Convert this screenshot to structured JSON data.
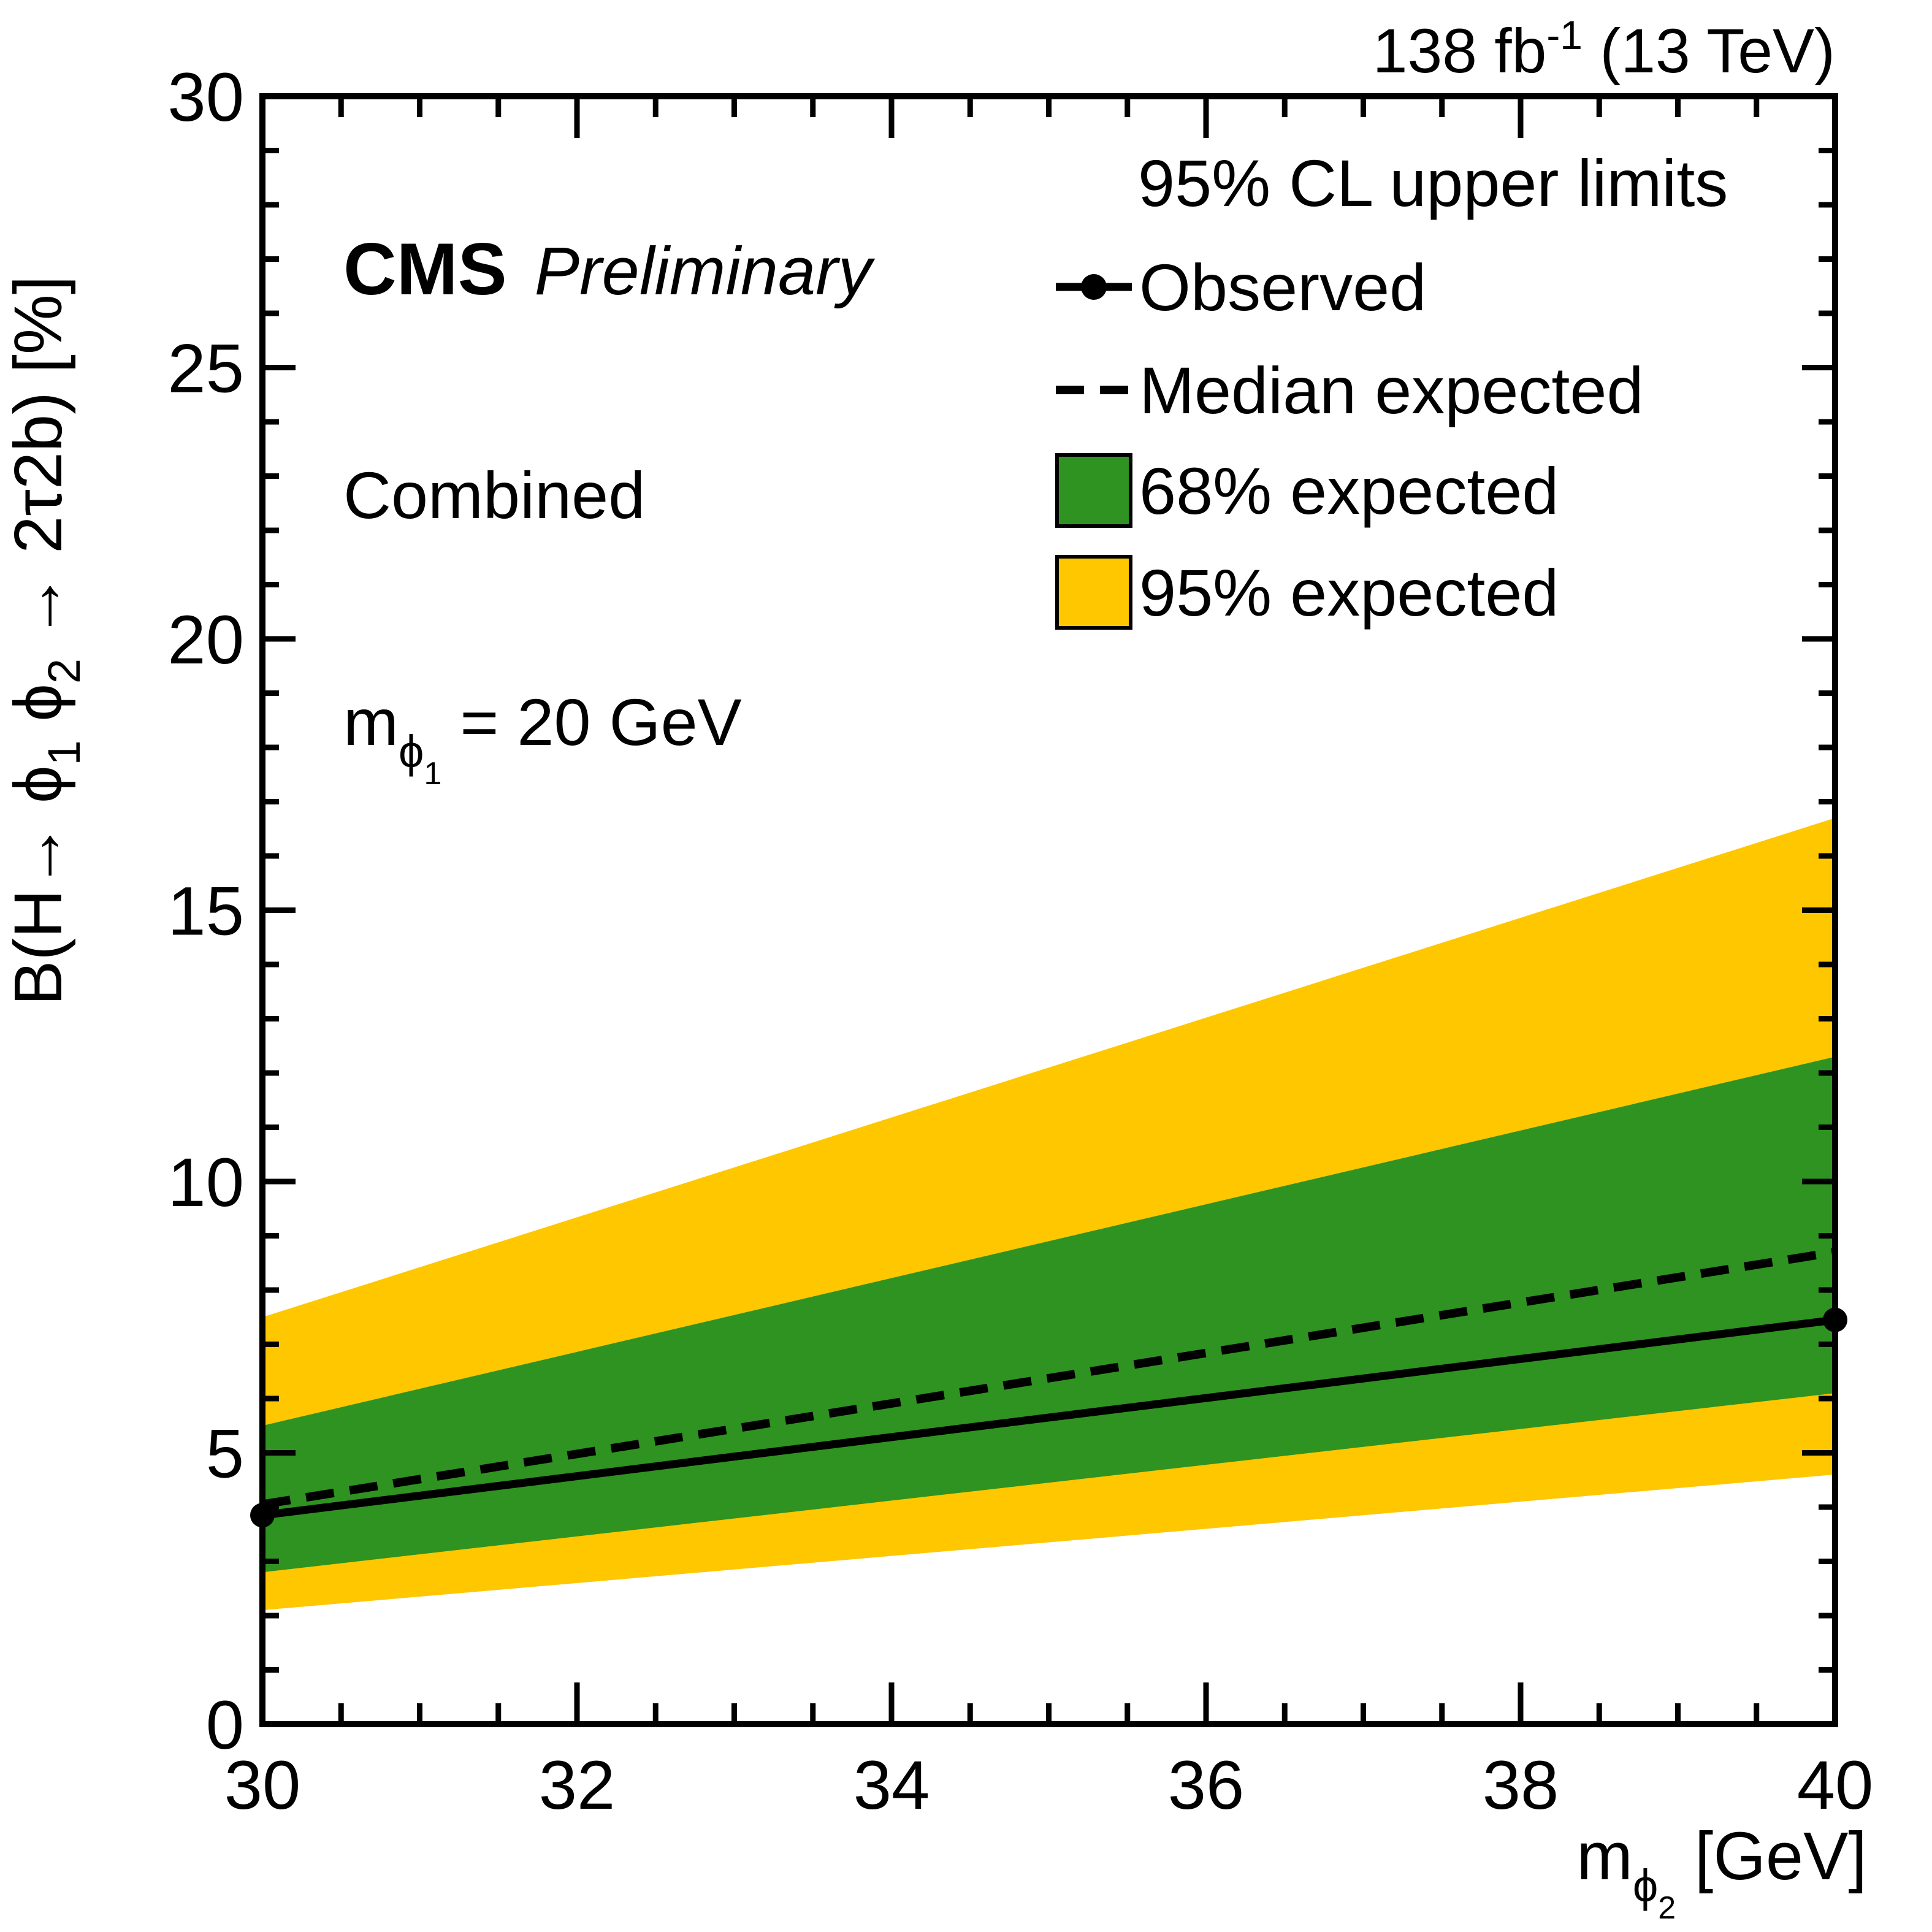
{
  "lumi": {
    "pre": "138 fb",
    "sup": "-1",
    "post": " (13 TeV)"
  },
  "annotations": {
    "experiment": "CMS",
    "status": "Preliminary",
    "channel": "Combined",
    "mass": {
      "m": "m",
      "phi": "ϕ",
      "phi_sub": "1",
      "rest": " = 20 GeV"
    }
  },
  "legend": {
    "header": "95% CL upper limits",
    "entries": [
      {
        "label": "Observed",
        "marker": "solid-line-with-dot"
      },
      {
        "label": "Median expected",
        "marker": "dashed-line"
      },
      {
        "label": "68% expected",
        "marker": "green-box"
      },
      {
        "label": "95% expected",
        "marker": "yellow-box"
      }
    ]
  },
  "axes": {
    "y_title": {
      "p1": "B(H→ ",
      "phi1": "ϕ",
      "sub1": "1",
      "p2": " ϕ",
      "sub2": "2",
      "p3": " → 2τ2b) [%]"
    },
    "x_title": {
      "m": "m",
      "phi": "ϕ",
      "sub": "2",
      "rest": " [GeV]"
    }
  },
  "chart_data": {
    "type": "line",
    "title": "95% CL upper limits on B(H->phi1 phi2->2tau2b), combined, m_phi1 = 20 GeV",
    "x": [
      30,
      40
    ],
    "series": [
      {
        "name": "Observed",
        "values": [
          3.85,
          7.45
        ],
        "style": "solid line, filled circle markers",
        "color": "#000000"
      },
      {
        "name": "Median expected",
        "values": [
          4.05,
          8.7
        ],
        "style": "dashed line",
        "color": "#000000"
      }
    ],
    "bands": [
      {
        "name": "68% expected",
        "low": [
          2.8,
          6.1
        ],
        "high": [
          5.5,
          12.3
        ],
        "color_key": "band68"
      },
      {
        "name": "95% expected",
        "low": [
          2.1,
          4.6
        ],
        "high": [
          7.5,
          16.7
        ],
        "color_key": "band95"
      }
    ],
    "xlabel": "m_phi2 [GeV]",
    "ylabel": "B(H -> phi1 phi2 -> 2tau2b) [%]",
    "xlim": [
      30,
      40
    ],
    "ylim": [
      0,
      30
    ],
    "xticks": [
      30,
      32,
      34,
      36,
      38,
      40
    ],
    "yticks": [
      0,
      5,
      10,
      15,
      20,
      25,
      30
    ],
    "x_minor_step": 0.5,
    "y_minor_step": 1,
    "grid": false,
    "legend_position": "top-right-inside",
    "colors": {
      "band68": "#2e9320",
      "band95": "#ffc700",
      "observed": "#000000",
      "expected": "#000000",
      "frame": "#000000"
    }
  }
}
